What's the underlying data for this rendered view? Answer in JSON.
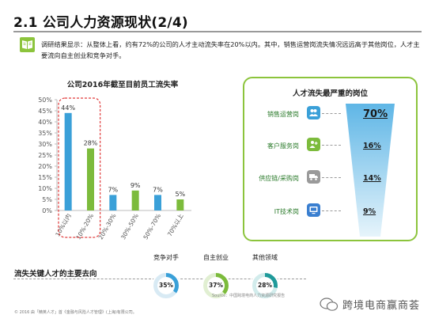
{
  "page": {
    "title": "2.1 公司人力资源现状(2/4)",
    "summary": "调研结果显示：从整体上看，约有72%的公司的人才主动流失率在20%以内。其中，销售运营岗流失情况远远高于其他岗位，人才主要流向自主创业和竞争对手。"
  },
  "chart_data": [
    {
      "type": "bar",
      "title": "公司2016年截至目前员工流失率",
      "categories": [
        "10%以内",
        "10%-20%",
        "20%-30%",
        "30%-50%",
        "50%-70%",
        "70%以上"
      ],
      "values": [
        44,
        28,
        7,
        9,
        7,
        5
      ],
      "value_labels": [
        "44%",
        "28%",
        "7%",
        "9%",
        "7%",
        "5%"
      ],
      "colors": [
        "#3aa0d8",
        "#7cbb3c",
        "#3aa0d8",
        "#7cbb3c",
        "#3aa0d8",
        "#7cbb3c"
      ],
      "ylim": [
        0,
        50
      ],
      "yticks": [
        "0%",
        "5%",
        "10%",
        "15%",
        "20%",
        "25%",
        "30%",
        "35%",
        "40%",
        "45%",
        "50%"
      ],
      "highlight": "first two bars outlined with a red dashed box",
      "grid": false
    },
    {
      "type": "funnel",
      "title": "人才流失最严重的岗位",
      "categories": [
        "销售运营岗",
        "客户服务岗",
        "供应链/采购岗",
        "IT技术岗"
      ],
      "values": [
        70,
        16,
        14,
        9
      ],
      "value_labels": [
        "70%",
        "16%",
        "14%",
        "9%"
      ],
      "icons": [
        "people-icon",
        "add-user-icon",
        "truck-icon",
        "monitor-icon"
      ],
      "icon_colors": [
        "#3aa0d8",
        "#7cbb3c",
        "#9a9a9a",
        "#3a7fd0"
      ],
      "accent": "#8cc43c"
    },
    {
      "type": "pie",
      "title": "流失关键人才的主要去向",
      "categories": [
        "竞争对手",
        "自主创业",
        "其他领域"
      ],
      "values": [
        35,
        37,
        28
      ],
      "value_labels": [
        "35%",
        "37%",
        "28%"
      ],
      "colors": [
        "#3aa0d8",
        "#7cbb3c",
        "#1f9a9a"
      ]
    }
  ],
  "footer": {
    "copyright": "© 2016 由「精英人才」首《金融与风险人才管理》(上海)有限公司。",
    "middle": "Source：中国跨境电商人力资源研究报告",
    "watermark": "跨境电商赢商荟"
  }
}
